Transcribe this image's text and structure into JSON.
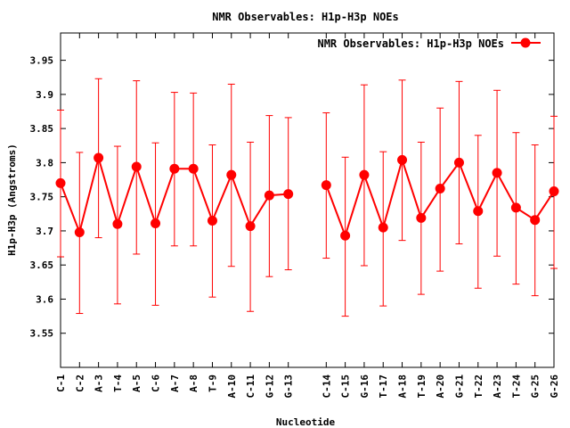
{
  "chart_data": {
    "type": "line",
    "title": "NMR Observables: H1p-H3p NOEs",
    "xlabel": "Nucleotide",
    "ylabel": "H1p-H3p (Angstroms)",
    "ylim": [
      3.5,
      3.99
    ],
    "y_ticks": [
      "3.55",
      "3.6",
      "3.65",
      "3.7",
      "3.75",
      "3.8",
      "3.85",
      "3.9",
      "3.95"
    ],
    "grid": false,
    "legend_position": "top-right",
    "series": [
      {
        "name": "NMR Observables: H1p-H3p NOEs",
        "color": "#ff0000",
        "segments": [
          {
            "x": [
              "C-1",
              "C-2",
              "A-3",
              "T-4",
              "A-5",
              "C-6",
              "A-7",
              "A-8",
              "T-9",
              "A-10",
              "C-11",
              "G-12",
              "G-13"
            ],
            "y": [
              3.77,
              3.698,
              3.807,
              3.71,
              3.794,
              3.711,
              3.791,
              3.791,
              3.715,
              3.782,
              3.707,
              3.752,
              3.754
            ],
            "err_low": [
              3.662,
              3.579,
              3.69,
              3.593,
              3.666,
              3.591,
              3.678,
              3.678,
              3.603,
              3.648,
              3.582,
              3.633,
              3.643
            ],
            "err_high": [
              3.877,
              3.815,
              3.923,
              3.824,
              3.92,
              3.829,
              3.903,
              3.902,
              3.826,
              3.915,
              3.83,
              3.869,
              3.866
            ]
          },
          {
            "x": [
              "C-14",
              "C-15",
              "G-16",
              "T-17",
              "A-18",
              "T-19",
              "A-20",
              "G-21",
              "T-22",
              "A-23",
              "T-24",
              "G-25",
              "G-26"
            ],
            "y": [
              3.767,
              3.693,
              3.782,
              3.705,
              3.804,
              3.719,
              3.762,
              3.8,
              3.729,
              3.785,
              3.734,
              3.716,
              3.758
            ],
            "err_low": [
              3.66,
              3.575,
              3.649,
              3.59,
              3.686,
              3.607,
              3.641,
              3.681,
              3.616,
              3.663,
              3.622,
              3.605,
              3.645
            ],
            "err_high": [
              3.873,
              3.808,
              3.914,
              3.816,
              3.921,
              3.83,
              3.88,
              3.919,
              3.84,
              3.906,
              3.844,
              3.826,
              3.868
            ]
          }
        ]
      }
    ]
  }
}
